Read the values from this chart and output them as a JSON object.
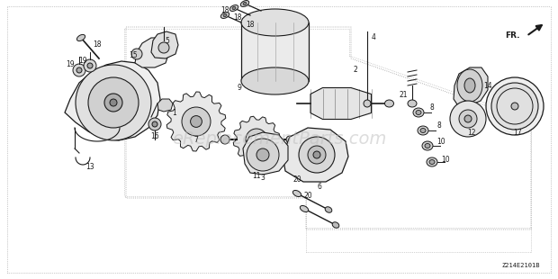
{
  "bg_color": "#ffffff",
  "border_color": "#999999",
  "line_color": "#1a1a1a",
  "watermark_text": "eReplacementParts.com",
  "watermark_color": "#bbbbbb",
  "watermark_alpha": 0.5,
  "diagram_code": "Z214E2101B",
  "fr_label": "FR.",
  "figsize": [
    6.2,
    3.1
  ],
  "dpi": 100
}
